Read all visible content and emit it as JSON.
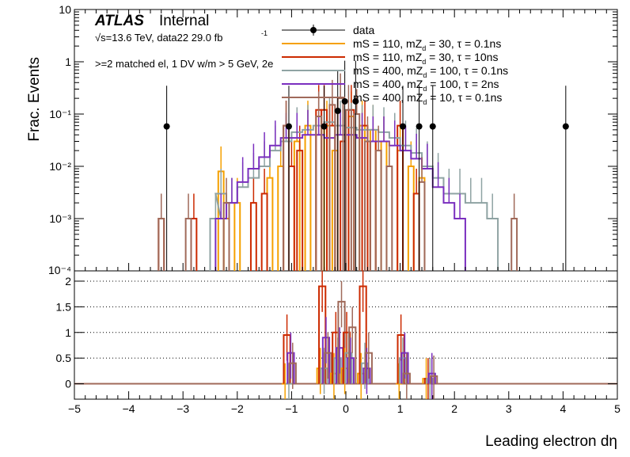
{
  "chart_data": {
    "type": "histogram",
    "atlas_label": "ATLAS",
    "atlas_status": "Internal",
    "energy_label": "√s=13.6 TeV, data22 29.0 fb",
    "energy_label_superscript": "-1",
    "selection_label": ">=2 matched el, 1 DV w/m > 5 GeV, 2e",
    "xlabel": "Leading electron dη",
    "ylabel": "Frac. Events",
    "xlim": [
      -5,
      5
    ],
    "x_ticks": [
      "−5",
      "−4",
      "−3",
      "−2",
      "−1",
      "0",
      "1",
      "2",
      "3",
      "4",
      "5"
    ],
    "top_panel": {
      "ylim": [
        0.0001,
        10
      ],
      "yscale": "log",
      "y_tick_values": [
        0.001,
        0.01,
        0.1,
        1,
        10
      ],
      "y_tick_labels": [
        "10⁻³",
        "10⁻²",
        "10⁻¹",
        "1",
        "10"
      ],
      "bottom_tick_label": "10⁻⁴",
      "legend_position": "top-right"
    },
    "ratio_panel": {
      "ylim": [
        -0.3,
        2.2
      ],
      "y_tick_labels": [
        "0",
        "0.5",
        "1",
        "1.5",
        "2"
      ],
      "y_tick_values": [
        0,
        0.5,
        1,
        1.5,
        2
      ],
      "grid": "dotted horizontal"
    },
    "data": {
      "legend": "data",
      "points": [
        {
          "x": -3.3,
          "y": 0.058
        },
        {
          "x": -1.05,
          "y": 0.058
        },
        {
          "x": -0.4,
          "y": 0.058
        },
        {
          "x": -0.15,
          "y": 0.115
        },
        {
          "x": -0.02,
          "y": 0.175
        },
        {
          "x": 0.18,
          "y": 0.175
        },
        {
          "x": 1.05,
          "y": 0.058
        },
        {
          "x": 1.35,
          "y": 0.058
        },
        {
          "x": 1.6,
          "y": 0.058
        },
        {
          "x": 4.05,
          "y": 0.058
        }
      ]
    },
    "series": [
      {
        "legend": "mS = 110, mZ_d = 30, τ = 0.1ns",
        "color": "#f5a000",
        "sparse": true,
        "bins": [
          [
            -2.3,
            0.008
          ],
          [
            -2.2,
            0.001
          ],
          [
            -2.0,
            0.002
          ],
          [
            -1.4,
            0.006
          ],
          [
            -1.2,
            0.01
          ],
          [
            -0.9,
            0.03
          ],
          [
            -0.7,
            0.06
          ],
          [
            -0.5,
            0.04
          ],
          [
            -0.35,
            0.06
          ],
          [
            -0.2,
            0.02
          ],
          [
            0.1,
            0.09
          ],
          [
            0.3,
            0.06
          ],
          [
            0.5,
            0.05
          ],
          [
            0.7,
            0.03
          ],
          [
            1.0,
            0.02
          ],
          [
            1.2,
            0.01
          ],
          [
            1.4,
            0.006
          ]
        ]
      },
      {
        "legend": "mS = 110, mZ_d = 30, τ = 10ns",
        "color": "#cc2a00",
        "sparse": true,
        "bins": [
          [
            -3.4,
            0.001
          ],
          [
            -2.8,
            0.001
          ],
          [
            -1.7,
            0.002
          ],
          [
            -1.5,
            0.003
          ],
          [
            -1.1,
            0.06
          ],
          [
            -1.0,
            0.01
          ],
          [
            -0.85,
            0.02
          ],
          [
            -0.5,
            0.12
          ],
          [
            -0.4,
            0.12
          ],
          [
            -0.25,
            0.06
          ],
          [
            -0.05,
            0.03
          ],
          [
            0.1,
            0.12
          ],
          [
            0.35,
            0.06
          ],
          [
            0.5,
            0.03
          ],
          [
            1.0,
            0.06
          ],
          [
            1.3,
            0.003
          ]
        ]
      },
      {
        "legend": "mS = 400, mZ_d = 100, τ = 0.1ns",
        "color": "#8fa3a3",
        "sparse": false,
        "bins": [
          [
            -2.4,
            0.001
          ],
          [
            -2.3,
            0.003
          ],
          [
            -2.1,
            0.002
          ],
          [
            -1.9,
            0.004
          ],
          [
            -1.7,
            0.006
          ],
          [
            -1.5,
            0.01
          ],
          [
            -1.3,
            0.02
          ],
          [
            -1.1,
            0.03
          ],
          [
            -0.9,
            0.045
          ],
          [
            -0.7,
            0.05
          ],
          [
            -0.5,
            0.06
          ],
          [
            -0.3,
            0.07
          ],
          [
            -0.1,
            0.06
          ],
          [
            0.1,
            0.055
          ],
          [
            0.3,
            0.05
          ],
          [
            0.5,
            0.05
          ],
          [
            0.7,
            0.045
          ],
          [
            0.9,
            0.035
          ],
          [
            1.1,
            0.025
          ],
          [
            1.3,
            0.018
          ],
          [
            1.5,
            0.01
          ],
          [
            1.7,
            0.006
          ],
          [
            1.9,
            0.003
          ],
          [
            2.1,
            0.003
          ],
          [
            2.3,
            0.002
          ],
          [
            2.5,
            0.002
          ],
          [
            2.7,
            0.001
          ]
        ]
      },
      {
        "legend": "mS = 400, mZ_d = 100, τ = 2ns",
        "color": "#7a2fbf",
        "sparse": false,
        "bins": [
          [
            -2.3,
            0.001
          ],
          [
            -2.1,
            0.002
          ],
          [
            -1.9,
            0.005
          ],
          [
            -1.7,
            0.009
          ],
          [
            -1.5,
            0.015
          ],
          [
            -1.3,
            0.025
          ],
          [
            -1.1,
            0.035
          ],
          [
            -0.9,
            0.035
          ],
          [
            -0.7,
            0.04
          ],
          [
            -0.5,
            0.04
          ],
          [
            -0.3,
            0.035
          ],
          [
            -0.1,
            0.04
          ],
          [
            0.1,
            0.04
          ],
          [
            0.3,
            0.035
          ],
          [
            0.5,
            0.03
          ],
          [
            0.7,
            0.03
          ],
          [
            0.9,
            0.025
          ],
          [
            1.1,
            0.02
          ],
          [
            1.3,
            0.014
          ],
          [
            1.5,
            0.009
          ],
          [
            1.7,
            0.004
          ],
          [
            1.9,
            0.002
          ],
          [
            2.1,
            0.001
          ]
        ]
      },
      {
        "legend": "mS = 400, mZ_d = 10, τ = 0.1ns",
        "color": "#a06a5a",
        "sparse": true,
        "bins": [
          [
            -3.4,
            0.001
          ],
          [
            -2.9,
            0.001
          ],
          [
            -2.2,
            0.002
          ],
          [
            -1.1,
            0.06
          ],
          [
            -0.5,
            0.09
          ],
          [
            -0.25,
            0.15
          ],
          [
            -0.1,
            0.2
          ],
          [
            0.05,
            0.12
          ],
          [
            0.2,
            0.1
          ],
          [
            0.4,
            0.03
          ],
          [
            0.6,
            0.02
          ],
          [
            0.8,
            0.01
          ],
          [
            1.4,
            0.005
          ],
          [
            3.1,
            0.001
          ]
        ]
      }
    ],
    "ratios": [
      {
        "x": -1.05,
        "values": [
          0,
          0.95,
          0,
          0.6,
          0.4
        ]
      },
      {
        "x": -0.4,
        "values": [
          0.3,
          1.9,
          0.3,
          0.9,
          0.6
        ]
      },
      {
        "x": -0.15,
        "values": [
          0.2,
          1.0,
          0.5,
          0.7,
          1.6
        ]
      },
      {
        "x": 0.05,
        "values": [
          0.3,
          1.0,
          0.6,
          0.5,
          1.1
        ]
      },
      {
        "x": 0.35,
        "values": [
          0.2,
          1.9,
          0.4,
          0.3,
          0.6
        ]
      },
      {
        "x": 1.05,
        "values": [
          0,
          0.95,
          0.5,
          0.6,
          0.2
        ]
      },
      {
        "x": 1.55,
        "values": [
          0.1,
          0.1,
          0.1,
          0.2,
          0.15
        ]
      }
    ]
  }
}
